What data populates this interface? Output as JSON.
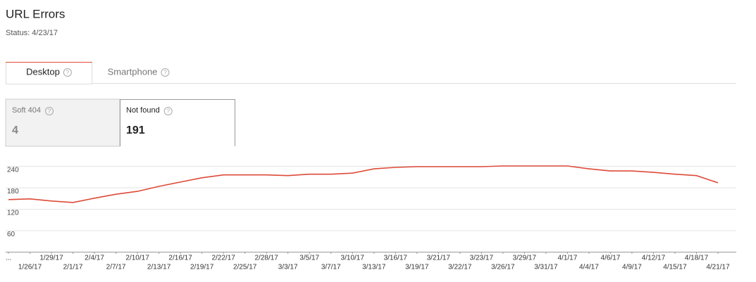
{
  "header": {
    "title": "URL Errors",
    "status": "Status: 4/23/17"
  },
  "help_icon": "?",
  "tabs": [
    {
      "label": "Desktop",
      "active": true
    },
    {
      "label": "Smartphone",
      "active": false
    }
  ],
  "metrics": [
    {
      "label": "Soft 404",
      "value": 4,
      "selected": false
    },
    {
      "label": "Not found",
      "value": 191,
      "selected": true
    }
  ],
  "chart_data": {
    "type": "line",
    "categories": [
      "...",
      "1/26/17",
      "1/29/17",
      "2/1/17",
      "2/4/17",
      "2/7/17",
      "2/10/17",
      "2/13/17",
      "2/16/17",
      "2/19/17",
      "2/22/17",
      "2/25/17",
      "2/28/17",
      "3/3/17",
      "3/5/17",
      "3/7/17",
      "3/10/17",
      "3/13/17",
      "3/16/17",
      "3/19/17",
      "3/21/17",
      "3/22/17",
      "3/23/17",
      "3/26/17",
      "3/29/17",
      "3/31/17",
      "4/1/17",
      "4/4/17",
      "4/6/17",
      "4/9/17",
      "4/12/17",
      "4/15/17",
      "4/18/17",
      "4/21/17"
    ],
    "values": [
      146,
      148,
      142,
      138,
      150,
      161,
      169,
      183,
      195,
      207,
      215,
      215,
      215,
      213,
      217,
      217,
      220,
      232,
      236,
      238,
      238,
      238,
      238,
      240,
      240,
      240,
      240,
      232,
      226,
      226,
      222,
      217,
      213,
      193
    ],
    "color": "#dd4b39",
    "ylim": [
      0,
      240
    ],
    "yticks": [
      60,
      120,
      180,
      240
    ],
    "grid": true
  }
}
